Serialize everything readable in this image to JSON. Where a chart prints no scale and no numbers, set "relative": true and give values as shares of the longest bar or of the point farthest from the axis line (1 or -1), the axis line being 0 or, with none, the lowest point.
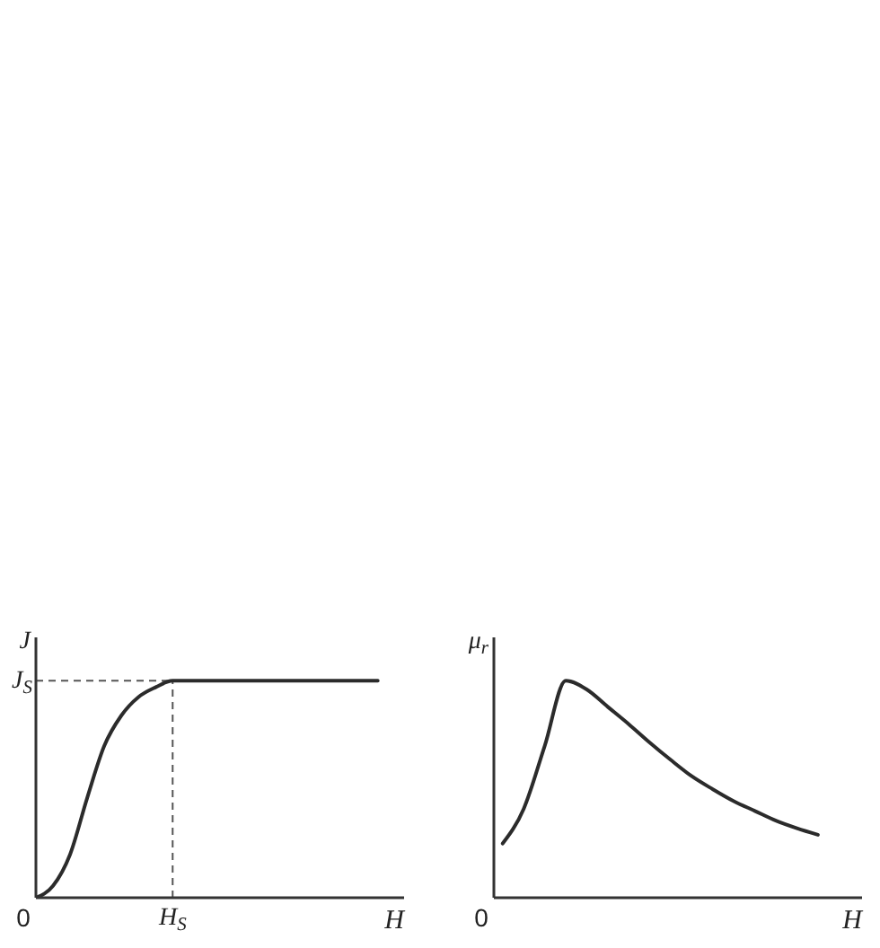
{
  "chart_data": [
    {
      "type": "line",
      "relative": true,
      "color": "#2b2b2b",
      "xlabel": "H",
      "ylabel": "J",
      "annotations": [
        "0",
        "H$_{S}$"
      ],
      "categories": [
        null,
        null,
        null,
        null,
        null,
        null,
        null,
        null,
        null,
        null,
        null,
        null,
        null,
        null,
        null,
        null,
        null,
        null,
        null,
        null,
        null
      ],
      "values": [
        0,
        0.055,
        0.2,
        0.46,
        0.7,
        0.84,
        0.925,
        0.97,
        1,
        1,
        1,
        1,
        1,
        1,
        1,
        1,
        1,
        1,
        1,
        1,
        1
      ],
      "ref_lines": [
        {
          "axis": "y",
          "value": 1,
          "label": "J$_{S}$",
          "line_style": "dashed",
          "color": "#555555"
        }
      ]
    },
    {
      "type": "line",
      "relative": true,
      "color": "#2b2b2b",
      "xlabel": "H",
      "ylabel": "μ$_{r}$",
      "annotations": [
        "0"
      ],
      "categories": [
        null,
        null,
        null,
        null,
        null,
        null,
        null,
        null,
        null,
        null,
        null,
        null,
        null,
        null,
        null,
        null
      ],
      "values": [
        0.25,
        0.41,
        0.7,
        1,
        0.96,
        0.88,
        0.8,
        0.715,
        0.635,
        0.56,
        0.5,
        0.445,
        0.4,
        0.355,
        0.32,
        0.29
      ]
    }
  ]
}
